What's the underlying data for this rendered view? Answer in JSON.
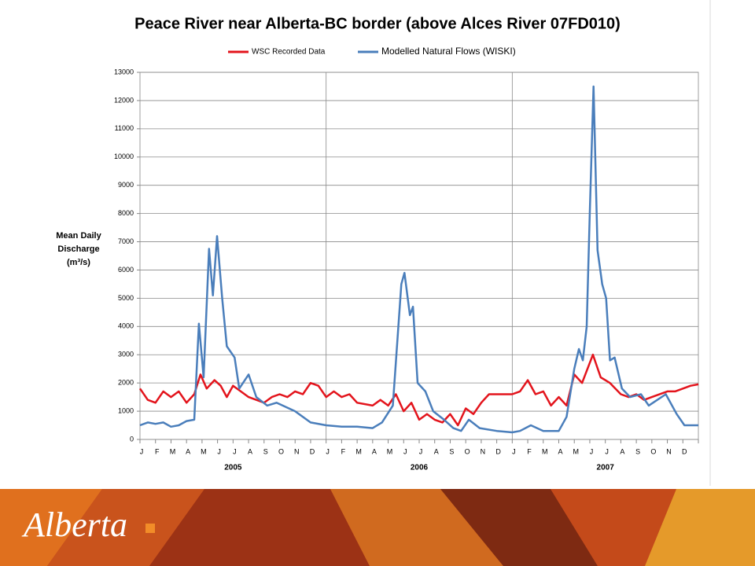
{
  "chart_data": {
    "type": "line",
    "title": "Peace River near Alberta-BC border (above Alces River 07FD010)",
    "y_label": "Mean Daily Discharge (m³/s)",
    "categories": [
      "J",
      "F",
      "M",
      "A",
      "M",
      "J",
      "J",
      "A",
      "S",
      "O",
      "N",
      "D",
      "J",
      "F",
      "M",
      "A",
      "M",
      "J",
      "J",
      "A",
      "S",
      "O",
      "N",
      "D",
      "J",
      "F",
      "M",
      "A",
      "M",
      "J",
      "J",
      "A",
      "S",
      "O",
      "N",
      "D"
    ],
    "year_labels": [
      2005,
      2006,
      2007
    ],
    "xlim": [
      0,
      36
    ],
    "xticks": [
      0,
      1,
      2,
      3,
      4,
      5,
      6,
      7,
      8,
      9,
      10,
      11,
      12,
      13,
      14,
      15,
      16,
      17,
      18,
      19,
      20,
      21,
      22,
      23,
      24,
      25,
      26,
      27,
      28,
      29,
      30,
      31,
      32,
      33,
      34,
      35,
      36
    ],
    "ylim": [
      0,
      13000
    ],
    "yticks": [
      0,
      1000,
      2000,
      3000,
      4000,
      5000,
      6000,
      7000,
      8000,
      9000,
      10000,
      11000,
      12000,
      13000
    ],
    "grid": true,
    "legend": "top",
    "series": [
      {
        "name": "WSC Recorded Data",
        "color": "#e3141c",
        "x": [
          0,
          0.5,
          1,
          1.5,
          2,
          2.5,
          3,
          3.5,
          3.9,
          4.3,
          4.8,
          5.2,
          5.6,
          6,
          6.5,
          7,
          8,
          8.5,
          9,
          9.5,
          10,
          10.5,
          11,
          11.5,
          12,
          12.5,
          13,
          13.5,
          14,
          15,
          15.5,
          16,
          16.5,
          17,
          17.5,
          18,
          18.5,
          19,
          19.5,
          20,
          20.5,
          21,
          21.5,
          22,
          22.5,
          23,
          24,
          24.5,
          25,
          25.5,
          26,
          26.5,
          27,
          27.5,
          28,
          28.5,
          29.2,
          29.7,
          30.3,
          31,
          31.5,
          32,
          32.5,
          33,
          34,
          34.5,
          35,
          35.5,
          36
        ],
        "values": [
          1800,
          1400,
          1300,
          1700,
          1500,
          1700,
          1300,
          1600,
          2300,
          1800,
          2100,
          1900,
          1500,
          1900,
          1700,
          1500,
          1300,
          1500,
          1600,
          1500,
          1700,
          1600,
          2000,
          1900,
          1500,
          1700,
          1500,
          1600,
          1300,
          1200,
          1400,
          1200,
          1600,
          1000,
          1300,
          700,
          900,
          700,
          600,
          900,
          500,
          1100,
          900,
          1300,
          1600,
          1600,
          1600,
          1700,
          2100,
          1600,
          1700,
          1200,
          1500,
          1200,
          2300,
          2000,
          3000,
          2200,
          2000,
          1600,
          1500,
          1600,
          1400,
          1500,
          1700,
          1700,
          1800,
          1900,
          1950
        ]
      },
      {
        "name": "Modelled Natural Flows (WISKI)",
        "color": "#4a7ebb",
        "x": [
          0,
          0.5,
          1,
          1.5,
          2,
          2.5,
          3,
          3.5,
          3.8,
          4.1,
          4.45,
          4.7,
          4.97,
          5.3,
          5.6,
          6.1,
          6.4,
          7,
          7.5,
          8.2,
          8.8,
          10,
          11,
          12,
          13,
          14,
          15,
          15.6,
          16.3,
          16.85,
          17.05,
          17.4,
          17.6,
          17.9,
          18.4,
          18.9,
          19.6,
          20.2,
          20.7,
          21.2,
          21.9,
          23,
          24,
          24.5,
          25.2,
          26,
          27,
          27.5,
          28,
          28.3,
          28.55,
          28.8,
          29.0,
          29.24,
          29.5,
          29.8,
          30.05,
          30.3,
          30.6,
          31.07,
          31.6,
          32.3,
          32.8,
          33.9,
          34.6,
          35.1,
          36
        ],
        "values": [
          500,
          600,
          550,
          600,
          450,
          500,
          650,
          700,
          4100,
          2200,
          6750,
          5100,
          7200,
          5000,
          3300,
          2900,
          1800,
          2300,
          1500,
          1200,
          1300,
          1000,
          600,
          500,
          450,
          450,
          400,
          600,
          1200,
          5500,
          5900,
          4400,
          4700,
          2000,
          1700,
          1000,
          700,
          400,
          300,
          700,
          400,
          300,
          250,
          300,
          500,
          300,
          300,
          800,
          2500,
          3200,
          2800,
          4000,
          8000,
          12500,
          6700,
          5500,
          5000,
          2800,
          2900,
          1800,
          1500,
          1600,
          1200,
          1600,
          900,
          500,
          500
        ]
      }
    ]
  },
  "footer": {
    "logo": "Alberta"
  }
}
